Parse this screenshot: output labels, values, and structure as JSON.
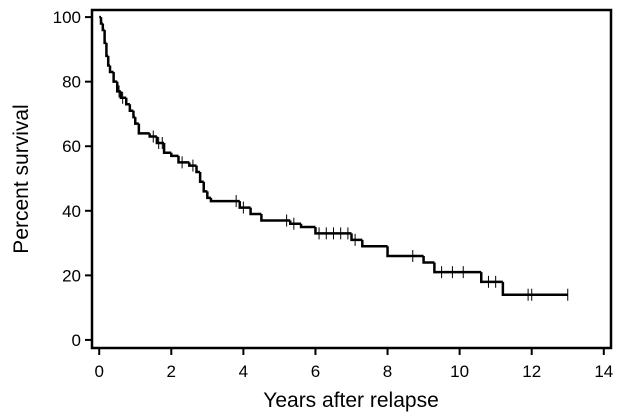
{
  "chart_data": {
    "type": "step",
    "x_label": "Years after relapse",
    "y_label": "Percent survival",
    "color": "#000000",
    "x": [
      0,
      0.05,
      0.1,
      0.15,
      0.2,
      0.25,
      0.3,
      0.4,
      0.5,
      0.6,
      0.75,
      0.85,
      0.95,
      1.0,
      1.1,
      1.4,
      1.6,
      1.8,
      2.0,
      2.2,
      2.5,
      2.7,
      2.8,
      2.9,
      3.0,
      3.1,
      3.9,
      4.2,
      4.5,
      5.3,
      5.6,
      6.0,
      7.0,
      7.3,
      8.0,
      9.0,
      9.3,
      10.6,
      11.2,
      13.0
    ],
    "values": [
      100,
      98,
      96,
      92,
      88,
      85,
      83,
      80,
      77,
      75,
      73,
      71,
      69,
      67,
      64,
      63,
      61,
      58,
      57,
      55,
      54,
      52,
      49,
      46,
      44,
      43,
      41,
      39,
      37,
      36,
      35,
      33,
      31,
      29,
      26,
      24,
      21,
      18,
      14,
      14
    ],
    "censor_x": [
      0.55,
      0.65,
      1.5,
      1.65,
      1.75,
      2.3,
      2.6,
      3.8,
      4.0,
      5.2,
      5.4,
      6.1,
      6.3,
      6.5,
      6.7,
      6.9,
      7.1,
      8.7,
      9.5,
      9.8,
      10.1,
      10.8,
      11.0,
      11.9,
      12.0,
      13.0
    ],
    "censor_values": [
      77,
      75,
      63,
      61,
      61,
      55,
      54,
      43,
      41,
      37,
      36,
      33,
      33,
      33,
      33,
      33,
      31,
      26,
      21,
      21,
      21,
      18,
      18,
      14,
      14,
      14
    ],
    "xlim": [
      -0.2,
      14.2
    ],
    "ylim": [
      -2.5,
      102.2
    ],
    "xticks": [
      0,
      2,
      4,
      6,
      8,
      10,
      12,
      14
    ],
    "yticks": [
      0,
      20,
      40,
      60,
      80,
      100
    ]
  }
}
